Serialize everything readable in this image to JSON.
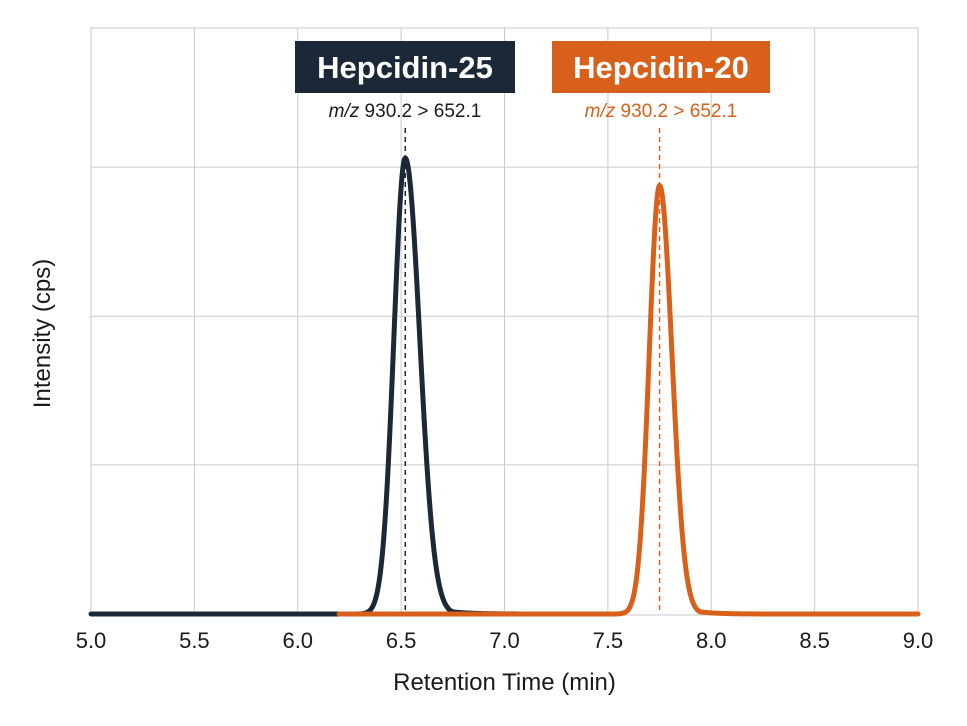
{
  "chart_data": {
    "type": "line",
    "xlabel": "Retention Time (min)",
    "ylabel": "Intensity (cps)",
    "xlim": [
      5.0,
      9.0
    ],
    "ylim": [
      0,
      1
    ],
    "grid": true,
    "x_ticks": [
      "5.0",
      "5.5",
      "6.0",
      "6.5",
      "7.0",
      "7.5",
      "8.0",
      "8.5",
      "9.0"
    ],
    "y_gridlines": [
      0.327,
      0.653,
      0.98
    ],
    "series": [
      {
        "name": "Hepcidin-25",
        "transition_prefix": "m/z",
        "transition": "930.2 > 652.1",
        "color": "#1b2838",
        "label_bg": "#1b2838",
        "label_text_color": "#ffffff",
        "transition_color": "#1a1a1a",
        "apex_x": 6.52,
        "apex_y": 1.0,
        "sigma_left": 0.055,
        "sigma_right": 0.07,
        "tail_tau": 0.09
      },
      {
        "name": "Hepcidin-20",
        "transition_prefix": "m/z",
        "transition": "930.2 > 652.1",
        "color": "#d9601a",
        "label_bg": "#d9601a",
        "label_text_color": "#ffffff",
        "transition_color": "#d9601a",
        "apex_x": 7.75,
        "apex_y": 0.94,
        "sigma_left": 0.05,
        "sigma_right": 0.06,
        "tail_tau": 0.08
      }
    ]
  }
}
